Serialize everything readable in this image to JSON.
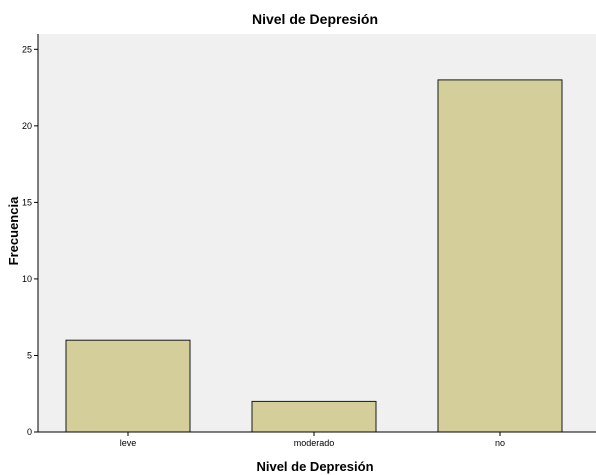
{
  "chart_data": {
    "type": "bar",
    "title": "Nivel de Depresión",
    "xlabel": "Nivel de Depresión",
    "ylabel": "Frecuencia",
    "categories": [
      "leve",
      "moderado",
      "no"
    ],
    "values": [
      6,
      2,
      23
    ],
    "ylim": [
      0,
      26
    ],
    "yticks": [
      0,
      5,
      10,
      15,
      20,
      25
    ],
    "grid": false,
    "legend": "none",
    "colors": {
      "bar_fill": "#d3ce9a",
      "bar_stroke": "#1a1a1a",
      "plot_background": "#f0f0f0",
      "axis": "#000000"
    }
  }
}
